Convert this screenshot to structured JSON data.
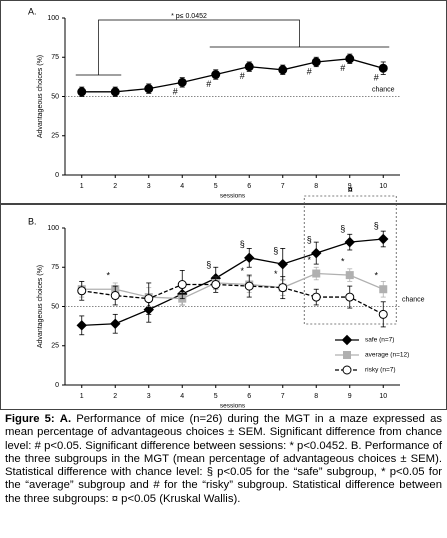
{
  "chart_data": [
    {
      "type": "line",
      "panel_label": "A.",
      "xlabel": "sessions",
      "ylabel": "Advantageous choices (%)",
      "x": [
        1,
        2,
        3,
        4,
        5,
        6,
        7,
        8,
        9,
        10
      ],
      "xlim": [
        0.5,
        10.5
      ],
      "xticks": [
        1,
        2,
        3,
        4,
        5,
        6,
        7,
        8,
        9,
        10
      ],
      "ylim": [
        0,
        100
      ],
      "yticks": [
        0,
        25,
        50,
        75,
        100
      ],
      "reference": {
        "label": "chance",
        "value": 50
      },
      "bracket": {
        "label": "* p≤ 0.0452",
        "groups": [
          [
            1,
            2
          ],
          [
            5,
            10
          ]
        ]
      },
      "series": [
        {
          "color": "#000000",
          "marker": "circle",
          "marker_fill": "#000000",
          "dashed": false,
          "values": [
            53,
            53,
            55,
            59,
            64,
            69,
            67,
            72,
            74,
            68
          ],
          "errors": [
            3,
            3,
            3,
            3,
            3,
            3,
            3,
            3,
            3,
            4
          ],
          "point_labels": [
            null,
            null,
            null,
            "#",
            "#",
            "#",
            null,
            "#",
            "#",
            "#"
          ],
          "label_side": "below"
        }
      ]
    },
    {
      "type": "line",
      "panel_label": "B.",
      "xlabel": "sessions",
      "ylabel": "Advantageous choices (%)",
      "x": [
        1,
        2,
        3,
        4,
        5,
        6,
        7,
        8,
        9,
        10
      ],
      "xlim": [
        0.5,
        10.5
      ],
      "xticks": [
        1,
        2,
        3,
        4,
        5,
        6,
        7,
        8,
        9,
        10
      ],
      "ylim": [
        0,
        100
      ],
      "yticks": [
        0,
        25,
        50,
        75,
        100
      ],
      "reference": {
        "label": "chance",
        "value": 50
      },
      "box": {
        "label": "¤",
        "x": [
          8,
          10
        ]
      },
      "legend": "lower right",
      "series": [
        {
          "name": "safe (n=7)",
          "color": "#000000",
          "marker": "diamond",
          "marker_fill": "#000000",
          "dashed": false,
          "values": [
            38,
            39,
            48,
            58,
            68,
            81,
            77,
            84,
            91,
            93
          ],
          "errors": [
            6,
            6,
            8,
            7,
            7,
            6,
            10,
            7,
            5,
            5
          ],
          "point_labels": [
            null,
            null,
            null,
            null,
            "§",
            "§",
            "§",
            "§",
            "§",
            "§"
          ],
          "label_side": "above"
        },
        {
          "name": "average (n=12)",
          "color": "#b0b0b0",
          "marker": "square",
          "marker_fill": "#b0b0b0",
          "dashed": false,
          "values": [
            61,
            61,
            56,
            55,
            65,
            64,
            62,
            71,
            70,
            61
          ],
          "errors": [
            5,
            4,
            6,
            4,
            4,
            5,
            5,
            4,
            4,
            5
          ],
          "point_labels": [
            null,
            "*",
            null,
            null,
            null,
            "*",
            "*",
            "*",
            "*",
            "*"
          ],
          "label_side": "above"
        },
        {
          "name": "risky (n=7)",
          "color": "#000000",
          "marker": "circle",
          "marker_fill": "#ffffff",
          "dashed": true,
          "values": [
            60,
            57,
            55,
            64,
            64,
            63,
            62,
            56,
            56,
            45
          ],
          "errors": [
            6,
            6,
            10,
            9,
            5,
            7,
            7,
            5,
            7,
            8
          ]
        }
      ]
    }
  ],
  "caption": {
    "figure_label": "Figure 5:",
    "panel_label": "A.",
    "text": "Performance of mice (n=26) during the MGT in a maze expressed as mean percentage of advantageous choices ± SEM. Significant difference from chance level: # p<0.05.   Significant difference between sessions: * p<0.0452. B. Performance of the three subgroups in the MGT (mean percentage of advantageous choices ± SEM).  Statistical difference with chance level: § p<0.05 for the “safe” subgroup,  * p<0.05 for the “average” subgroup and # for the “risky” subgroup. Statistical difference between the three subgroups: ¤ p<0.05 (Kruskal Wallis)."
  }
}
